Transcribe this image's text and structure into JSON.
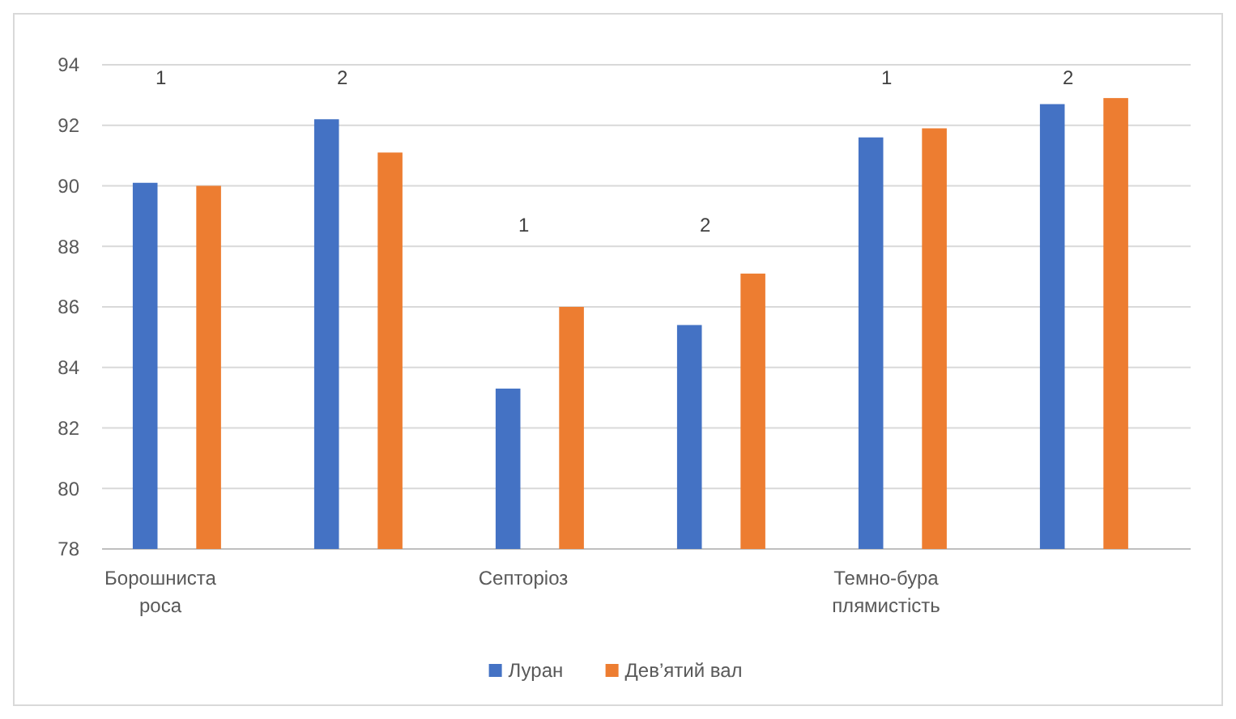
{
  "chart_data": {
    "type": "bar",
    "categories": [
      "Борошниста роса",
      null,
      "Септоріоз",
      null,
      "Темно-бура плямистість",
      null
    ],
    "series": [
      {
        "name": "Луран",
        "color": "#4472c4",
        "values": [
          90.1,
          92.2,
          83.3,
          85.4,
          91.6,
          92.7
        ]
      },
      {
        "name": "Дев’ятий вал",
        "color": "#ed7d31",
        "values": [
          90.0,
          91.1,
          86.0,
          87.1,
          91.9,
          92.9
        ]
      }
    ],
    "annotations": [
      "1",
      "2",
      "1",
      "2",
      "1",
      "2"
    ],
    "ylim": [
      78,
      94
    ],
    "yticks": [
      78,
      80,
      82,
      84,
      86,
      88,
      90,
      92,
      94
    ],
    "grid": "y",
    "legend": "bottom"
  }
}
